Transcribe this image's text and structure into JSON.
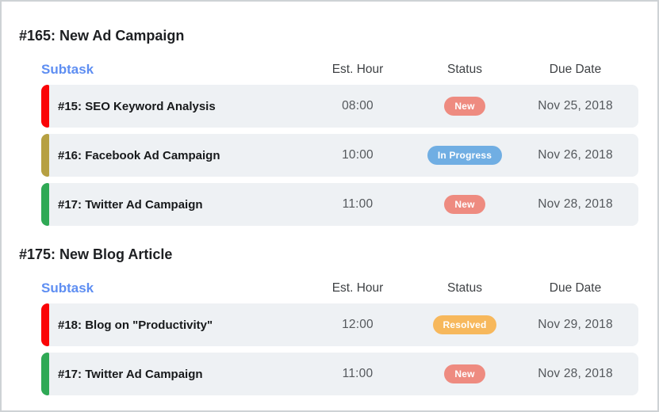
{
  "colors": {
    "row_background": "#eef1f4",
    "frame_border": "#ced2d5",
    "subtask_header_blue": "#5e8ef2",
    "status_new": "#ee8b80",
    "status_in_progress": "#70aee3",
    "status_resolved": "#f7b85c",
    "bar_red": "#fa0407",
    "bar_olive": "#b6a042",
    "bar_green": "#2fa955"
  },
  "sections": [
    {
      "title": "#165: New Ad Campaign",
      "columns": {
        "subtask": "Subtask",
        "est_hour": "Est. Hour",
        "status": "Status",
        "due_date": "Due Date"
      },
      "rows": [
        {
          "name": "#15: SEO Keyword Analysis",
          "est_hour": "08:00",
          "status": "New",
          "status_color": "#ee8b80",
          "bar_color": "#fa0407",
          "due_date": "Nov 25, 2018"
        },
        {
          "name": "#16: Facebook Ad Campaign",
          "est_hour": "10:00",
          "status": "In Progress",
          "status_color": "#70aee3",
          "bar_color": "#b6a042",
          "due_date": "Nov 26, 2018"
        },
        {
          "name": "#17: Twitter Ad Campaign",
          "est_hour": "11:00",
          "status": "New",
          "status_color": "#ee8b80",
          "bar_color": "#2fa955",
          "due_date": "Nov 28, 2018"
        }
      ]
    },
    {
      "title": "#175: New Blog Article",
      "columns": {
        "subtask": "Subtask",
        "est_hour": "Est. Hour",
        "status": "Status",
        "due_date": "Due Date"
      },
      "rows": [
        {
          "name": "#18: Blog on \"Productivity\"",
          "est_hour": "12:00",
          "status": "Resolved",
          "status_color": "#f7b85c",
          "bar_color": "#fa0407",
          "due_date": "Nov 29, 2018"
        },
        {
          "name": "#17: Twitter Ad Campaign",
          "est_hour": "11:00",
          "status": "New",
          "status_color": "#ee8b80",
          "bar_color": "#2fa955",
          "due_date": "Nov 28, 2018"
        }
      ]
    }
  ]
}
